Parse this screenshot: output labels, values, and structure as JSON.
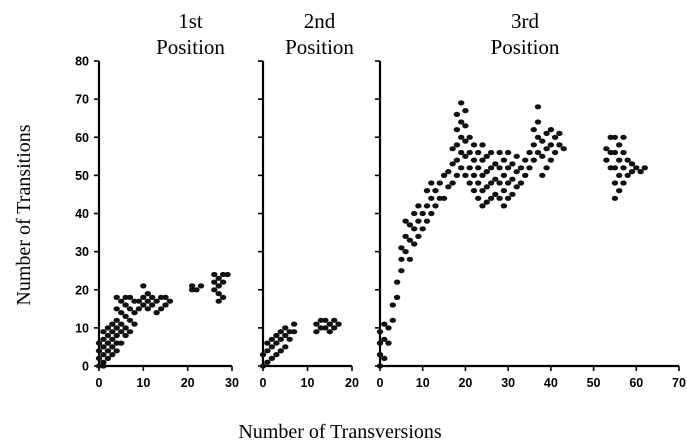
{
  "chart_data": {
    "type": "scatter",
    "xlabel": "Number of Transversions",
    "ylabel": "Number of Transitions",
    "ylim": [
      0,
      80
    ],
    "yticks": [
      0,
      10,
      20,
      30,
      40,
      50,
      60,
      70,
      80
    ],
    "grid": false,
    "legend": "none",
    "point_color": "#111111",
    "panels": [
      {
        "title_line1": "1st",
        "title_line2": "Position",
        "xlim": [
          0,
          30
        ],
        "xticks": [
          0,
          10,
          20,
          30
        ],
        "points": [
          [
            0,
            0
          ],
          [
            0,
            2
          ],
          [
            0,
            4
          ],
          [
            0,
            6
          ],
          [
            1,
            0
          ],
          [
            1,
            1
          ],
          [
            1,
            3
          ],
          [
            1,
            5
          ],
          [
            1,
            7
          ],
          [
            1,
            9
          ],
          [
            2,
            2
          ],
          [
            2,
            4
          ],
          [
            2,
            6
          ],
          [
            2,
            8
          ],
          [
            2,
            10
          ],
          [
            3,
            3
          ],
          [
            3,
            5
          ],
          [
            3,
            7
          ],
          [
            3,
            9
          ],
          [
            3,
            11
          ],
          [
            4,
            4
          ],
          [
            4,
            6
          ],
          [
            4,
            8
          ],
          [
            4,
            10
          ],
          [
            4,
            12
          ],
          [
            4,
            15
          ],
          [
            4,
            18
          ],
          [
            5,
            6
          ],
          [
            5,
            9
          ],
          [
            5,
            11
          ],
          [
            5,
            14
          ],
          [
            5,
            17
          ],
          [
            6,
            8
          ],
          [
            6,
            10
          ],
          [
            6,
            13
          ],
          [
            6,
            16
          ],
          [
            6,
            18
          ],
          [
            7,
            9
          ],
          [
            7,
            12
          ],
          [
            7,
            15
          ],
          [
            7,
            18
          ],
          [
            8,
            11
          ],
          [
            8,
            14
          ],
          [
            8,
            17
          ],
          [
            9,
            15
          ],
          [
            9,
            17
          ],
          [
            10,
            16
          ],
          [
            10,
            18
          ],
          [
            10,
            21
          ],
          [
            11,
            15
          ],
          [
            11,
            17
          ],
          [
            11,
            19
          ],
          [
            12,
            16
          ],
          [
            12,
            18
          ],
          [
            13,
            14
          ],
          [
            13,
            17
          ],
          [
            14,
            15
          ],
          [
            14,
            18
          ],
          [
            15,
            16
          ],
          [
            15,
            18
          ],
          [
            16,
            17
          ],
          [
            21,
            20
          ],
          [
            21,
            21
          ],
          [
            22,
            20
          ],
          [
            23,
            21
          ],
          [
            26,
            20
          ],
          [
            26,
            22
          ],
          [
            26,
            24
          ],
          [
            27,
            17
          ],
          [
            27,
            19
          ],
          [
            27,
            21
          ],
          [
            27,
            23
          ],
          [
            28,
            18
          ],
          [
            28,
            22
          ],
          [
            28,
            24
          ],
          [
            29,
            24
          ]
        ]
      },
      {
        "title_line1": "2nd",
        "title_line2": "Position",
        "xlim": [
          0,
          20
        ],
        "xticks": [
          0,
          10,
          20
        ],
        "points": [
          [
            0,
            0
          ],
          [
            0,
            3
          ],
          [
            1,
            1
          ],
          [
            1,
            4
          ],
          [
            1,
            6
          ],
          [
            2,
            2
          ],
          [
            2,
            5
          ],
          [
            2,
            7
          ],
          [
            3,
            3
          ],
          [
            3,
            6
          ],
          [
            3,
            8
          ],
          [
            4,
            4
          ],
          [
            4,
            7
          ],
          [
            4,
            9
          ],
          [
            5,
            5
          ],
          [
            5,
            8
          ],
          [
            5,
            10
          ],
          [
            6,
            7
          ],
          [
            6,
            9
          ],
          [
            7,
            9
          ],
          [
            7,
            11
          ],
          [
            12,
            9
          ],
          [
            12,
            11
          ],
          [
            13,
            10
          ],
          [
            13,
            12
          ],
          [
            14,
            10
          ],
          [
            14,
            12
          ],
          [
            15,
            9
          ],
          [
            15,
            11
          ],
          [
            16,
            10
          ],
          [
            16,
            12
          ],
          [
            17,
            11
          ]
        ]
      },
      {
        "title_line1": "3rd",
        "title_line2": "Position",
        "xlim": [
          0,
          70
        ],
        "xticks": [
          0,
          10,
          20,
          30,
          40,
          50,
          60,
          70
        ],
        "points": [
          [
            0,
            0
          ],
          [
            0,
            3
          ],
          [
            0,
            6
          ],
          [
            0,
            9
          ],
          [
            1,
            2
          ],
          [
            1,
            7
          ],
          [
            1,
            11
          ],
          [
            2,
            6
          ],
          [
            2,
            10
          ],
          [
            3,
            12
          ],
          [
            3,
            16
          ],
          [
            4,
            18
          ],
          [
            4,
            22
          ],
          [
            5,
            25
          ],
          [
            5,
            28
          ],
          [
            5,
            31
          ],
          [
            6,
            30
          ],
          [
            6,
            34
          ],
          [
            6,
            38
          ],
          [
            7,
            28
          ],
          [
            7,
            33
          ],
          [
            7,
            37
          ],
          [
            8,
            32
          ],
          [
            8,
            36
          ],
          [
            8,
            40
          ],
          [
            9,
            34
          ],
          [
            9,
            38
          ],
          [
            9,
            42
          ],
          [
            10,
            36
          ],
          [
            10,
            40
          ],
          [
            11,
            38
          ],
          [
            11,
            42
          ],
          [
            11,
            46
          ],
          [
            12,
            40
          ],
          [
            12,
            44
          ],
          [
            12,
            48
          ],
          [
            13,
            42
          ],
          [
            13,
            46
          ],
          [
            14,
            44
          ],
          [
            14,
            48
          ],
          [
            15,
            44
          ],
          [
            15,
            50
          ],
          [
            16,
            47
          ],
          [
            16,
            51
          ],
          [
            17,
            48
          ],
          [
            17,
            53
          ],
          [
            17,
            57
          ],
          [
            18,
            50
          ],
          [
            18,
            54
          ],
          [
            18,
            58
          ],
          [
            18,
            62
          ],
          [
            18,
            66
          ],
          [
            19,
            52
          ],
          [
            19,
            56
          ],
          [
            19,
            60
          ],
          [
            19,
            64
          ],
          [
            19,
            69
          ],
          [
            20,
            50
          ],
          [
            20,
            55
          ],
          [
            20,
            59
          ],
          [
            20,
            63
          ],
          [
            20,
            67
          ],
          [
            21,
            48
          ],
          [
            21,
            52
          ],
          [
            21,
            56
          ],
          [
            21,
            60
          ],
          [
            22,
            46
          ],
          [
            22,
            50
          ],
          [
            22,
            54
          ],
          [
            22,
            58
          ],
          [
            23,
            44
          ],
          [
            23,
            48
          ],
          [
            23,
            52
          ],
          [
            23,
            56
          ],
          [
            24,
            42
          ],
          [
            24,
            46
          ],
          [
            24,
            50
          ],
          [
            24,
            54
          ],
          [
            24,
            58
          ],
          [
            25,
            43
          ],
          [
            25,
            47
          ],
          [
            25,
            51
          ],
          [
            25,
            55
          ],
          [
            26,
            44
          ],
          [
            26,
            48
          ],
          [
            26,
            52
          ],
          [
            26,
            56
          ],
          [
            27,
            45
          ],
          [
            27,
            49
          ],
          [
            27,
            53
          ],
          [
            28,
            44
          ],
          [
            28,
            48
          ],
          [
            28,
            52
          ],
          [
            28,
            56
          ],
          [
            29,
            42
          ],
          [
            29,
            46
          ],
          [
            29,
            50
          ],
          [
            29,
            54
          ],
          [
            30,
            44
          ],
          [
            30,
            48
          ],
          [
            30,
            52
          ],
          [
            30,
            56
          ],
          [
            31,
            45
          ],
          [
            31,
            49
          ],
          [
            31,
            53
          ],
          [
            32,
            47
          ],
          [
            32,
            51
          ],
          [
            32,
            55
          ],
          [
            33,
            48
          ],
          [
            33,
            52
          ],
          [
            34,
            50
          ],
          [
            34,
            54
          ],
          [
            35,
            52
          ],
          [
            35,
            56
          ],
          [
            36,
            54
          ],
          [
            36,
            58
          ],
          [
            36,
            62
          ],
          [
            37,
            56
          ],
          [
            37,
            60
          ],
          [
            37,
            64
          ],
          [
            37,
            68
          ],
          [
            38,
            50
          ],
          [
            38,
            55
          ],
          [
            38,
            59
          ],
          [
            39,
            52
          ],
          [
            39,
            57
          ],
          [
            39,
            61
          ],
          [
            40,
            54
          ],
          [
            40,
            58
          ],
          [
            40,
            62
          ],
          [
            41,
            56
          ],
          [
            41,
            60
          ],
          [
            42,
            58
          ],
          [
            42,
            61
          ],
          [
            43,
            57
          ],
          [
            53,
            54
          ],
          [
            53,
            57
          ],
          [
            54,
            52
          ],
          [
            54,
            56
          ],
          [
            54,
            60
          ],
          [
            55,
            44
          ],
          [
            55,
            48
          ],
          [
            55,
            52
          ],
          [
            55,
            56
          ],
          [
            55,
            60
          ],
          [
            56,
            46
          ],
          [
            56,
            50
          ],
          [
            56,
            54
          ],
          [
            56,
            58
          ],
          [
            57,
            48
          ],
          [
            57,
            52
          ],
          [
            57,
            56
          ],
          [
            57,
            60
          ],
          [
            58,
            50
          ],
          [
            58,
            54
          ],
          [
            59,
            51
          ],
          [
            59,
            53
          ],
          [
            60,
            52
          ],
          [
            61,
            51
          ],
          [
            62,
            52
          ]
        ]
      }
    ]
  }
}
